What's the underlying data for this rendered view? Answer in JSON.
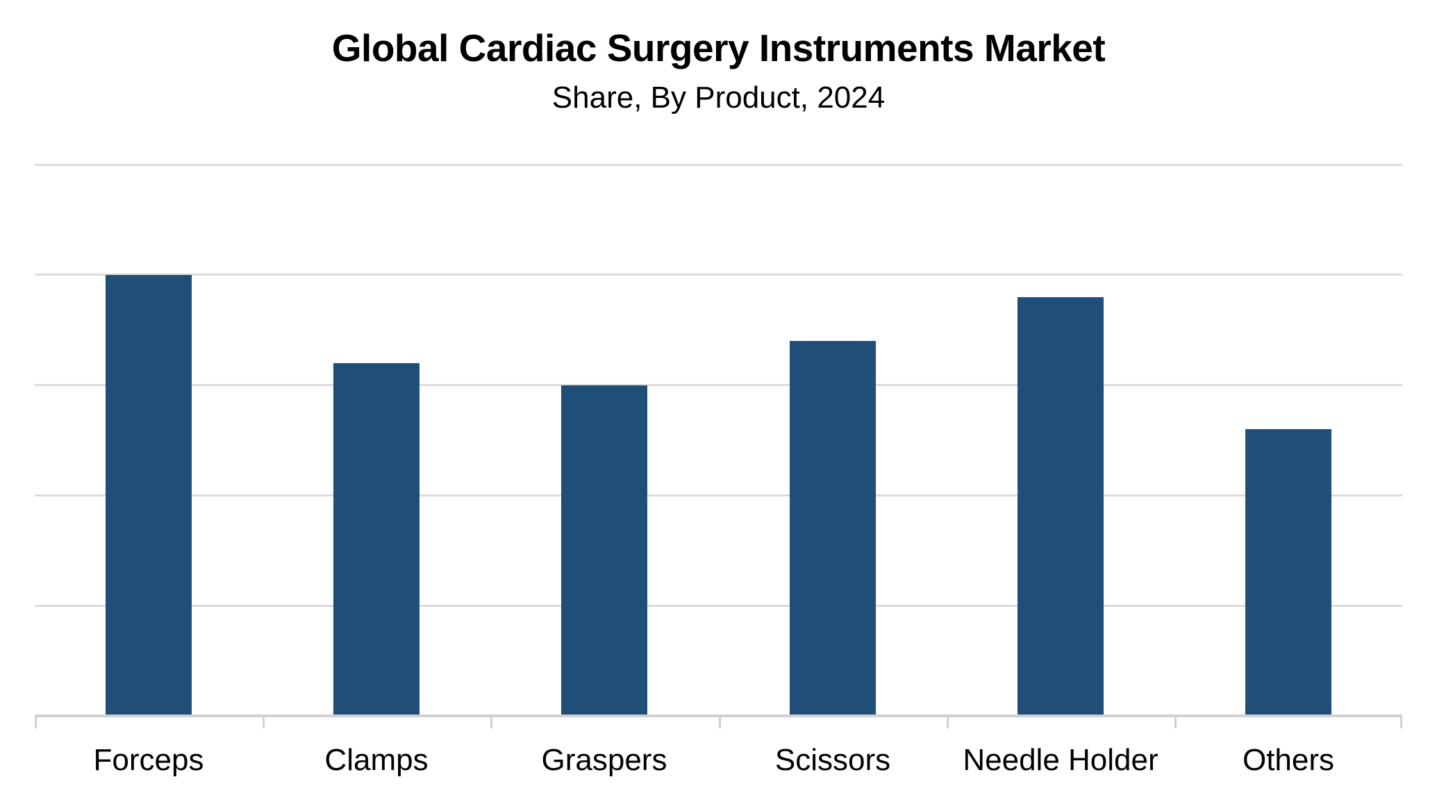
{
  "chart_data": {
    "type": "bar",
    "title": "Global Cardiac Surgery Instruments Market",
    "subtitle": "Share, By Product, 2024",
    "categories": [
      "Forceps",
      "Clamps",
      "Graspers",
      "Scissors",
      "Needle Holder",
      "Others"
    ],
    "values": [
      20,
      16,
      15,
      17,
      19,
      13
    ],
    "unit": "%",
    "xlabel": "",
    "ylabel": "",
    "ylim": [
      0,
      25
    ],
    "gridline_step": 5,
    "grid": true,
    "y_axis_tick_labels_visible": false,
    "data_labels_visible": false,
    "legend_position": "none",
    "colors": {
      "bar": "#1F4E79",
      "gridline": "#DBDBDB",
      "axis_line": "#D2D0D0",
      "tick": "#D2D0D0",
      "text": "#000000",
      "background": "#FFFFFF"
    }
  }
}
